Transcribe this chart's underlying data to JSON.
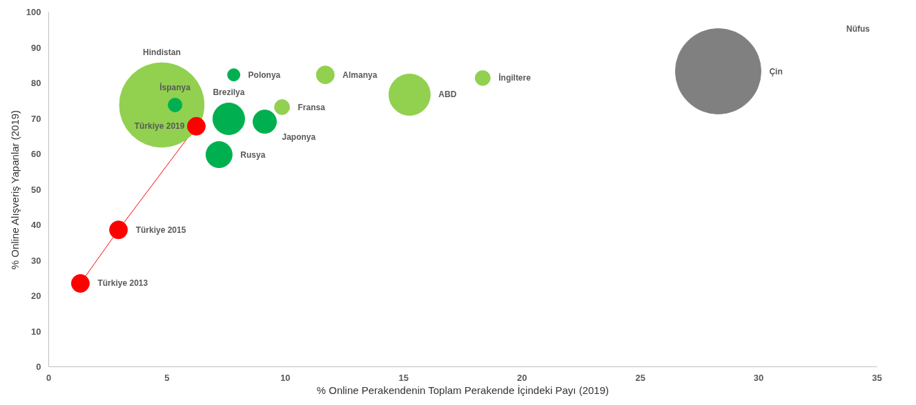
{
  "chart_data": {
    "type": "bubble",
    "xlabel": "% Online Perakendenin Toplam Perakende İçindeki Payı (2019)",
    "ylabel": "% Online Alışveriş Yapanlar (2019)",
    "xlim": [
      0,
      35
    ],
    "ylim": [
      0,
      100
    ],
    "xticks": [
      0,
      5,
      10,
      15,
      20,
      25,
      30,
      35
    ],
    "yticks": [
      0,
      10,
      20,
      30,
      40,
      50,
      60,
      70,
      80,
      90,
      100
    ],
    "grid": false,
    "legend": "top right",
    "series": [
      {
        "type": "line",
        "color": "#ff0000",
        "x": [
          1.34,
          2.95,
          6.24
        ],
        "values": [
          23.5,
          38.6,
          67.8
        ]
      },
      {
        "name": "Nüfus",
        "x": [
          4.78,
          5.34,
          6.24,
          7.82,
          7.61,
          9.13,
          7.2,
          9.86,
          11.69,
          15.25,
          18.34,
          28.29,
          2.95,
          1.34
        ],
        "values": [
          73.8,
          73.8,
          67.8,
          82.3,
          69.9,
          69.1,
          59.8,
          73.2,
          82.3,
          76.7,
          81.4,
          83.3,
          38.6,
          23.5
        ],
        "sizes": [
          0.98,
          0.026,
          0.044,
          0.021,
          0.138,
          0.075,
          0.094,
          0.031,
          0.044,
          0.234,
          0.031,
          1,
          0.044,
          0.044
        ],
        "colors": [
          "#92d050",
          "#00b050",
          "#ff0000",
          "#00b050",
          "#00b050",
          "#00b050",
          "#00b050",
          "#92d050",
          "#92d050",
          "#92d050",
          "#92d050",
          "#808080",
          "#ff0000",
          "#ff0000"
        ]
      }
    ],
    "annotations": [
      "Hindistan",
      "İspanya",
      "Türkiye 2019",
      "Polonya",
      "Brezilya",
      "Japonya",
      "Rusya",
      "Fransa",
      "Almanya",
      "ABD",
      "İngiltere",
      "Çin",
      "Türkiye 2015",
      "Türkiye 2013"
    ]
  }
}
